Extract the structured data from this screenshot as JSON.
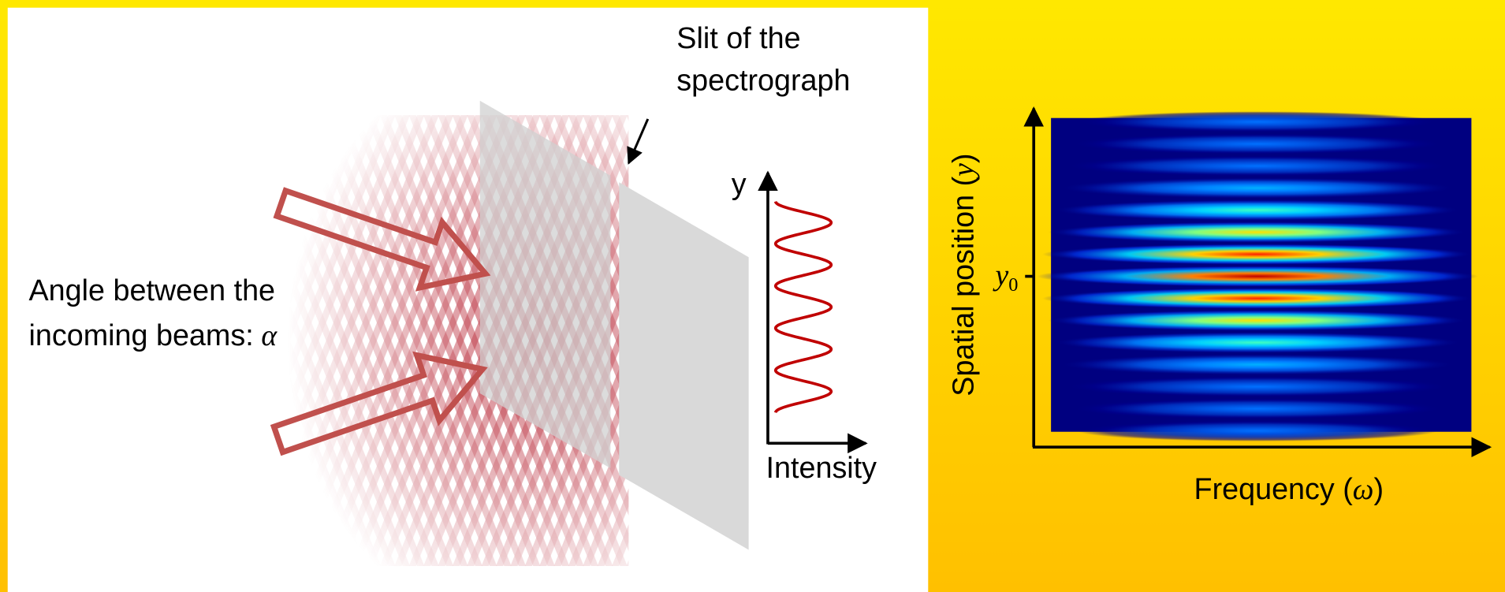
{
  "slit_label": {
    "lines": [
      "Slit of the",
      "spectrograph"
    ]
  },
  "intensity_plot": {
    "y_axis": "y",
    "x_axis": "Intensity"
  },
  "angle_label": {
    "lines": [
      "Angle between the",
      "incoming beams:"
    ],
    "symbol": "α"
  },
  "heatmap": {
    "y_axis": {
      "text": "Spatial position (",
      "symbol": "y",
      "close": ")"
    },
    "y_marker": {
      "symbol": "y",
      "subscript": "0"
    },
    "x_axis": {
      "text": "Frequency (",
      "symbol": "ω",
      "close": ")"
    }
  }
}
